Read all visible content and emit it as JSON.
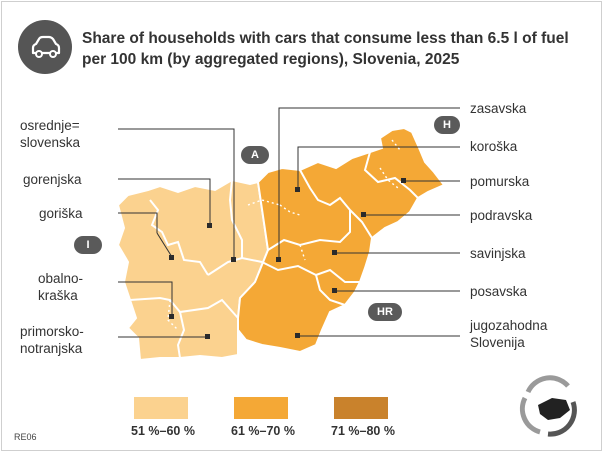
{
  "title": "Share of households with cars that consume less than 6.5 l of fuel per 100 km (by aggregated regions), Slovenia, 2025",
  "map_code": "RE06",
  "country_badges": {
    "italy": "I",
    "austria": "A",
    "hungary": "H",
    "croatia": "HR"
  },
  "colors": {
    "low": "#fbd28f",
    "mid": "#f4a836",
    "high": "#c9822c",
    "border": "#ffffff",
    "leader": "#333333"
  },
  "regions": [
    {
      "name": "osrednje=\nslovenska",
      "class": "51 %–60 %"
    },
    {
      "name": "gorenjska",
      "class": "51 %–60 %"
    },
    {
      "name": "goriška",
      "class": "51 %–60 %"
    },
    {
      "name": "obalno-\nkraška",
      "class": "51 %–60 %"
    },
    {
      "name": "primorsko-\nnotranjska",
      "class": "51 %–60 %"
    },
    {
      "name": "zasavska",
      "class": "61 %–70 %"
    },
    {
      "name": "koroška",
      "class": "61 %–70 %"
    },
    {
      "name": "pomurska",
      "class": "61 %–70 %"
    },
    {
      "name": "podravska",
      "class": "61 %–70 %"
    },
    {
      "name": "savinjska",
      "class": "61 %–70 %"
    },
    {
      "name": "posavska",
      "class": "61 %–70 %"
    },
    {
      "name": "jugozahodna\nSlovenija",
      "class": "61 %–70 %"
    }
  ],
  "legend": [
    {
      "label": "51 %–60 %",
      "color": "#fbd28f"
    },
    {
      "label": "61 %–70 %",
      "color": "#f4a836"
    },
    {
      "label": "71 %–80 %",
      "color": "#c9822c"
    }
  ]
}
